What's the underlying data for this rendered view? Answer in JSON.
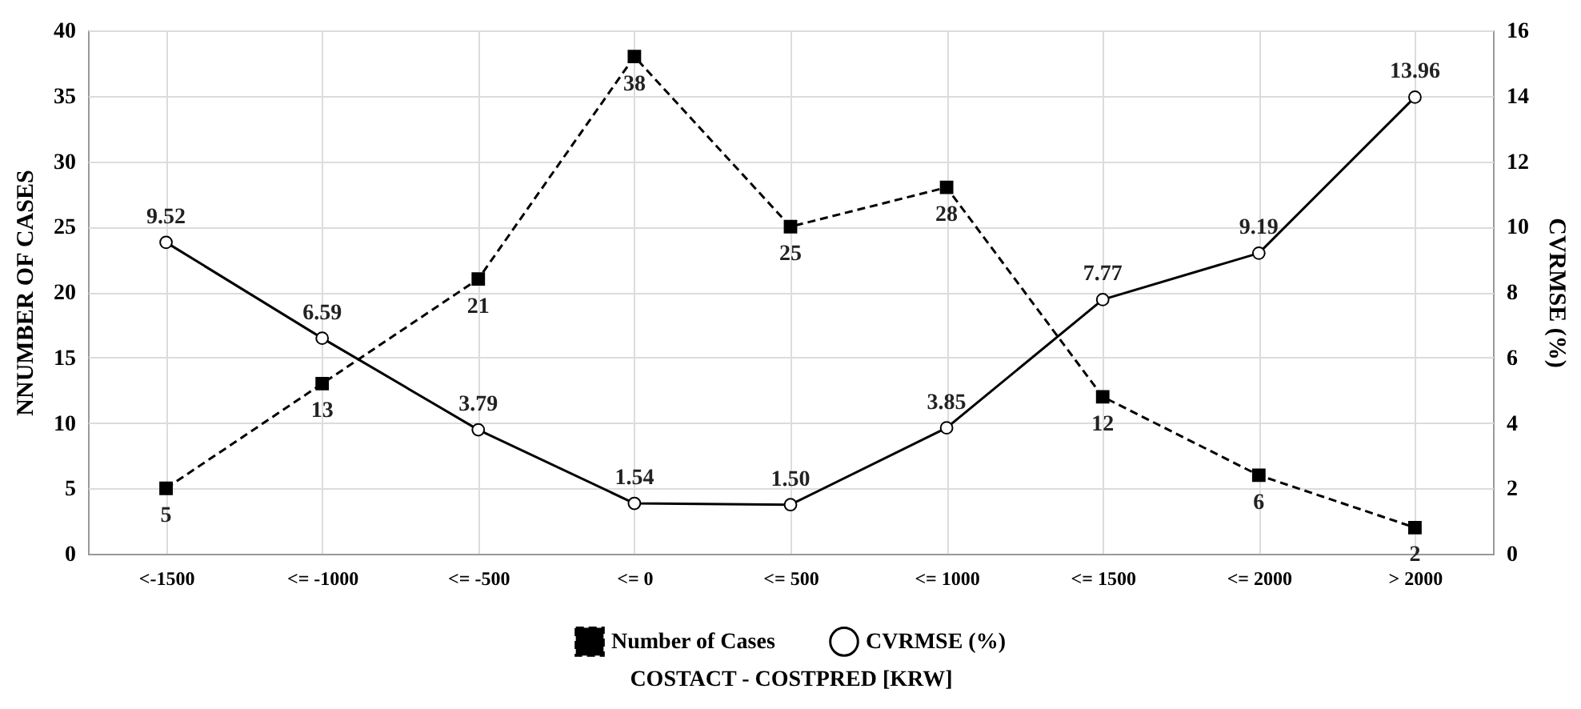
{
  "chart_data": {
    "type": "line",
    "xlabel": "COSTACT - COSTPRED [KRW]",
    "ylabel": "NNUMBER OF CASES",
    "y2label": "CVRMSE  (%)",
    "categories": [
      "<-1500",
      "<= -1000",
      "<= -500",
      "<= 0",
      "<= 500",
      "<= 1000",
      "<= 1500",
      "<= 2000",
      "> 2000"
    ],
    "series": [
      {
        "name": "Number of Cases",
        "color": "#000000",
        "marker": "square",
        "line_style": "dashed",
        "values": [
          5,
          13,
          21,
          38,
          25,
          28,
          12,
          6,
          2
        ],
        "value_labels": [
          "5",
          "13",
          "21",
          "38",
          "25",
          "28",
          "12",
          "6",
          "2"
        ]
      },
      {
        "name": "CVRMSE (%)",
        "color": "#000000",
        "marker": "circle",
        "line_style": "solid",
        "axis": "y2",
        "values": [
          9.52,
          6.59,
          3.79,
          1.54,
          1.5,
          3.85,
          7.77,
          9.19,
          13.96
        ],
        "value_labels": [
          "9.52",
          "6.59",
          "3.79",
          "1.54",
          "1.50",
          "3.85",
          "7.77",
          "9.19",
          "13.96"
        ]
      }
    ],
    "ylim": [
      0,
      40
    ],
    "yticks": [
      0,
      5,
      10,
      15,
      20,
      25,
      30,
      35,
      40
    ],
    "y2lim": [
      0,
      16
    ],
    "y2ticks": [
      0,
      2,
      4,
      6,
      8,
      10,
      12,
      14,
      16
    ],
    "grid": true,
    "legend": "bottom"
  }
}
